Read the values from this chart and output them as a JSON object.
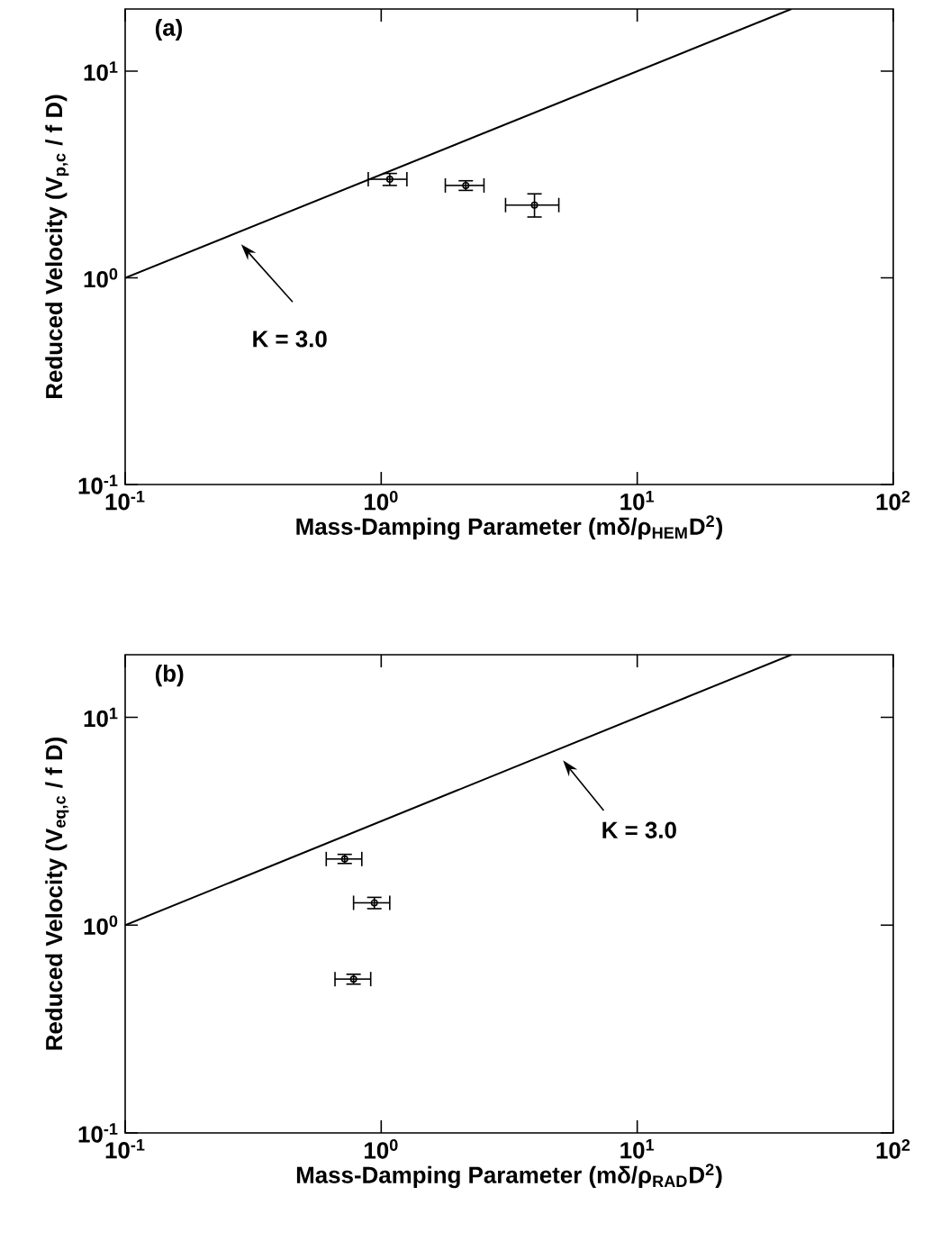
{
  "chart_data": [
    {
      "type": "scatter",
      "title": "(a)",
      "xlabel": "Mass-Damping Parameter (mδ/ρ$_{HEM}$D$^{2}$)",
      "ylabel": "Reduced Velocity  (V$_{p,c}$ / f D)",
      "log": "xy",
      "grid": false,
      "xlim": [
        0.1,
        100
      ],
      "ylim": [
        0.1,
        20
      ],
      "xticks": [
        {
          "value": 0.1,
          "label": "10$^{-1}$"
        },
        {
          "value": 1,
          "label": "10$^{0}$"
        },
        {
          "value": 10,
          "label": "10$^{1}$"
        },
        {
          "value": 100,
          "label": "10$^{2}$"
        }
      ],
      "yticks": [
        {
          "value": 0.1,
          "label": "10$^{-1}$"
        },
        {
          "value": 1,
          "label": "10$^{0}$"
        },
        {
          "value": 10,
          "label": "10$^{1}$"
        }
      ],
      "annotations": [
        "K = 3.0"
      ],
      "series": [
        {
          "type": "line",
          "color": "#000000",
          "line_style": "solid",
          "marker": "none",
          "x": [
            0.1,
            40
          ],
          "values": [
            1.0,
            20
          ]
        },
        {
          "color": "#000000",
          "marker": "circle",
          "x": [
            1.08,
            2.14,
            3.97
          ],
          "values": [
            3.0,
            2.8,
            2.25
          ],
          "errors": [
            [
              2.8,
              3.2
            ],
            [
              2.65,
              2.95
            ],
            [
              1.97,
              2.55
            ]
          ],
          "xerrors": [
            [
              0.89,
              1.26
            ],
            [
              1.78,
              2.52
            ],
            [
              3.06,
              4.94
            ]
          ]
        }
      ]
    },
    {
      "type": "scatter",
      "title": "(b)",
      "xlabel": "Mass-Damping Parameter (mδ/ρ$_{RAD}$D$^{2}$)",
      "ylabel": "Reduced Velocity  (V$_{eq,c}$ / f D)",
      "log": "xy",
      "grid": false,
      "xlim": [
        0.1,
        100
      ],
      "ylim": [
        0.1,
        20
      ],
      "xticks": [
        {
          "value": 0.1,
          "label": "10$^{-1}$"
        },
        {
          "value": 1,
          "label": "10$^{0}$"
        },
        {
          "value": 10,
          "label": "10$^{1}$"
        },
        {
          "value": 100,
          "label": "10$^{2}$"
        }
      ],
      "yticks": [
        {
          "value": 0.1,
          "label": "10$^{-1}$"
        },
        {
          "value": 1,
          "label": "10$^{0}$"
        },
        {
          "value": 10,
          "label": "10$^{1}$"
        }
      ],
      "annotations": [
        "K = 3.0"
      ],
      "series": [
        {
          "type": "line",
          "color": "#000000",
          "line_style": "solid",
          "marker": "none",
          "x": [
            0.1,
            40
          ],
          "values": [
            1.0,
            20
          ]
        },
        {
          "color": "#000000",
          "marker": "circle",
          "x": [
            0.72,
            0.94,
            0.78
          ],
          "values": [
            2.08,
            1.28,
            0.55
          ],
          "errors": [
            [
              1.98,
              2.19
            ],
            [
              1.2,
              1.36
            ],
            [
              0.52,
              0.58
            ]
          ],
          "xerrors": [
            [
              0.61,
              0.84
            ],
            [
              0.78,
              1.08
            ],
            [
              0.66,
              0.91
            ]
          ]
        }
      ]
    }
  ]
}
